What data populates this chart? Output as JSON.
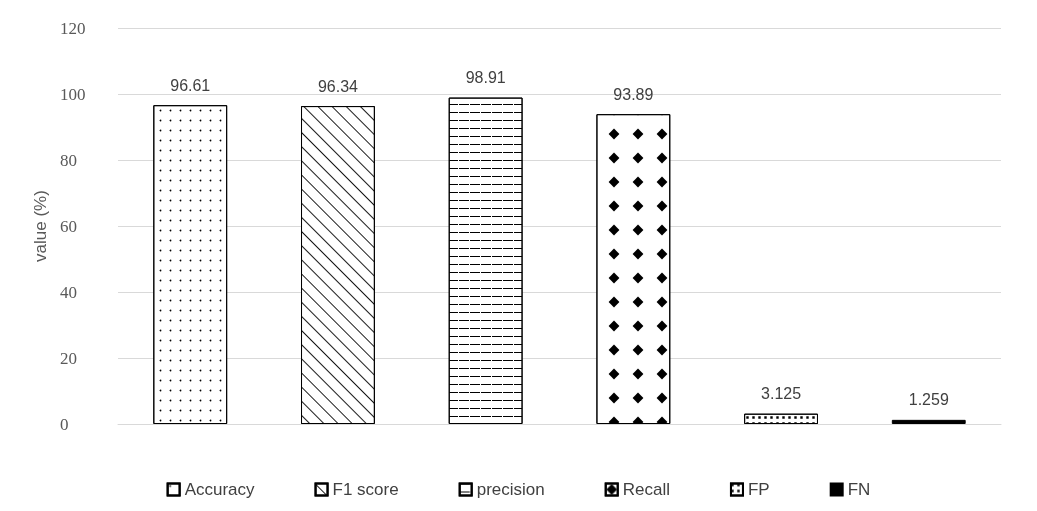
{
  "chart_data": {
    "type": "bar",
    "ylabel": "value (%)",
    "categories": [
      null
    ],
    "series": [
      {
        "name": "Accuracy",
        "color": "#000000",
        "values": [
          96.61
        ]
      },
      {
        "name": "F1 score",
        "color": "#000000",
        "values": [
          96.34
        ]
      },
      {
        "name": "precision",
        "color": "#000000",
        "values": [
          98.91
        ]
      },
      {
        "name": "Recall",
        "color": "#000000",
        "values": [
          93.89
        ]
      },
      {
        "name": "FP",
        "color": "#000000",
        "values": [
          3.125
        ]
      },
      {
        "name": "FN",
        "color": "#000000",
        "values": [
          1.259
        ]
      }
    ],
    "ylim": [
      0,
      120
    ],
    "yticks": [
      0,
      20,
      40,
      60,
      80,
      100,
      120
    ],
    "grid": "y",
    "legend": "bottom",
    "data_labels": true
  }
}
